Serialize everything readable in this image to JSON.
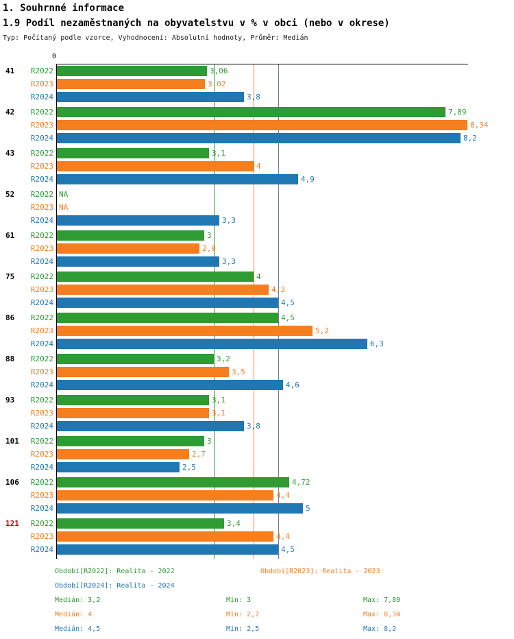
{
  "header": {
    "section_title": "1. Souhrnné informace",
    "chart_title": "1.9 Podíl nezaměstnaných na obyvatelstvu v % v obci (nebo v okrese)",
    "meta": "Typ: Počítaný podle vzorce, Vyhodnocení: Absolutní hodnoty, Průměr: Medián"
  },
  "chart_data": {
    "type": "bar",
    "orientation": "horizontal",
    "title": "1.9 Podíl nezaměstnaných na obyvatelstvu v % v obci (nebo v okrese)",
    "axis_origin_label": "0",
    "xlim": [
      0,
      8.34
    ],
    "grid": false,
    "categories": [
      "41",
      "42",
      "43",
      "52",
      "61",
      "75",
      "86",
      "88",
      "93",
      "101",
      "106",
      "121"
    ],
    "highlighted_category": "121",
    "highlight_color": "#cc0000",
    "series": [
      {
        "name": "R2022",
        "color": "#2e9b33",
        "values": [
          3.06,
          7.89,
          3.1,
          null,
          3,
          4,
          4.5,
          3.2,
          3.1,
          3,
          4.72,
          3.4
        ],
        "labels": [
          "3,06",
          "7,89",
          "3,1",
          "NA",
          "3",
          "4",
          "4,5",
          "3,2",
          "3,1",
          "3",
          "4,72",
          "3,4"
        ]
      },
      {
        "name": "R2023",
        "color": "#f57e1f",
        "values": [
          3.02,
          8.34,
          4,
          null,
          2.9,
          4.3,
          5.2,
          3.5,
          3.1,
          2.7,
          4.4,
          4.4
        ],
        "labels": [
          "3,02",
          "8,34",
          "4",
          "NA",
          "2,9",
          "4,3",
          "5,2",
          "3,5",
          "3,1",
          "2,7",
          "4,4",
          "4,4"
        ]
      },
      {
        "name": "R2024",
        "color": "#1f77b4",
        "values": [
          3.8,
          8.2,
          4.9,
          3.3,
          3.3,
          4.5,
          6.3,
          4.6,
          3.8,
          2.5,
          5,
          4.5
        ],
        "labels": [
          "3,8",
          "8,2",
          "4,9",
          "3,3",
          "3,3",
          "4,5",
          "6,3",
          "4,6",
          "3,8",
          "2,5",
          "5",
          "4,5"
        ]
      }
    ],
    "reference_lines": [
      {
        "series": "R2022",
        "label": "Medián R2022",
        "value": 3.2,
        "color": "#2e9b33"
      },
      {
        "series": "R2023",
        "label": "Medián R2023",
        "value": 4.0,
        "color": "#f57e1f"
      },
      {
        "series": "R2024",
        "label": "Medián R2024",
        "value": 4.5,
        "color": "#708090"
      }
    ]
  },
  "legend": {
    "items": [
      {
        "series": "R2022",
        "label": "Období[R2022]: Realita - 2022"
      },
      {
        "series": "R2023",
        "label": "Období[R2023]: Realita - 2023"
      },
      {
        "series": "R2024",
        "label": "Období[R2024]: Realita - 2024"
      }
    ]
  },
  "stats": {
    "rows": [
      {
        "series": "R2022",
        "median": "Medián: 3,2",
        "min": "Min: 3",
        "max": "Max: 7,89"
      },
      {
        "series": "R2023",
        "median": "Medián: 4",
        "min": "Min: 2,7",
        "max": "Max: 8,34"
      },
      {
        "series": "R2024",
        "median": "Medián: 4,5",
        "min": "Min: 2,5",
        "max": "Max: 8,2"
      }
    ]
  }
}
